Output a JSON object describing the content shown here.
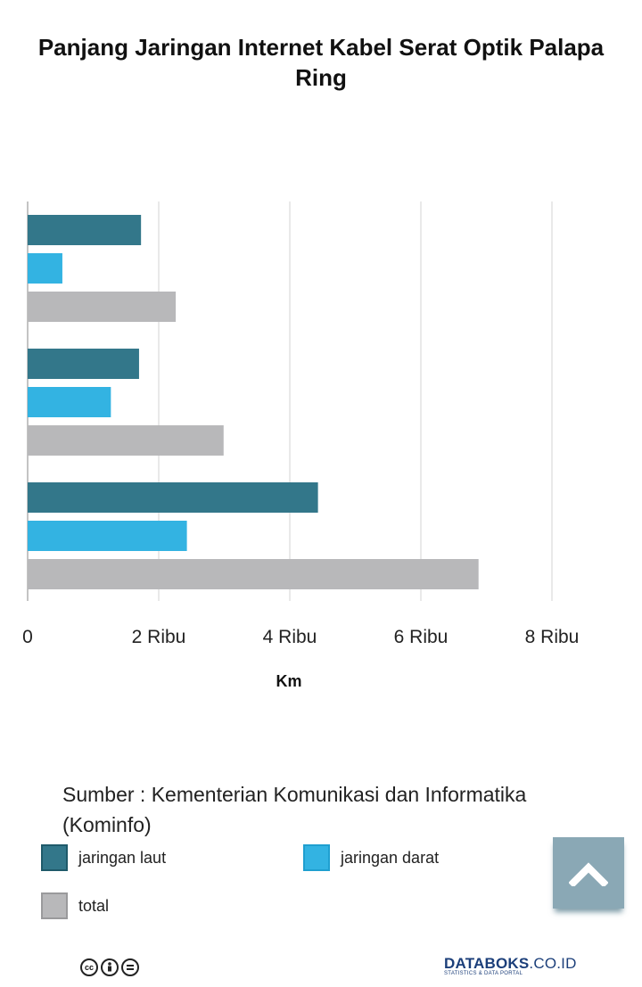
{
  "title": "Panjang Jaringan Internet Kabel Serat Optik Palapa Ring",
  "source": "Sumber : Kementerian Komunikasi dan Informatika (Kominfo)",
  "legend": [
    {
      "label": "jaringan laut",
      "color": "#33778a",
      "border": "#1f5a6a"
    },
    {
      "label": "jaringan darat",
      "color": "#33b3e2",
      "border": "#1f9fd0"
    },
    {
      "label": "total",
      "color": "#b8b8ba",
      "border": "#9a9a9c"
    }
  ],
  "chart_data": {
    "type": "bar",
    "orientation": "horizontal",
    "categories": [
      "",
      "",
      ""
    ],
    "series": [
      {
        "name": "jaringan laut",
        "values": [
          1730,
          1700,
          4430
        ],
        "color": "#33778a"
      },
      {
        "name": "jaringan darat",
        "values": [
          530,
          1270,
          2430
        ],
        "color": "#33b3e2"
      },
      {
        "name": "total",
        "values": [
          2260,
          2990,
          6880
        ],
        "color": "#b8b8ba"
      }
    ],
    "xlabel": "Km",
    "xlim": [
      0,
      8000
    ],
    "xticks": [
      0,
      2000,
      4000,
      6000,
      8000
    ],
    "xtick_labels": [
      "0",
      "2 Ribu",
      "4 Ribu",
      "6 Ribu",
      "8 Ribu"
    ],
    "grid": true
  },
  "footer": {
    "cc_icons": [
      "cc-icon",
      "by-icon",
      "nd-icon"
    ],
    "brand_main": "DATABOKS",
    "brand_suffix": ".CO.ID",
    "brand_sub": "STATISTICS & DATA PORTAL"
  }
}
